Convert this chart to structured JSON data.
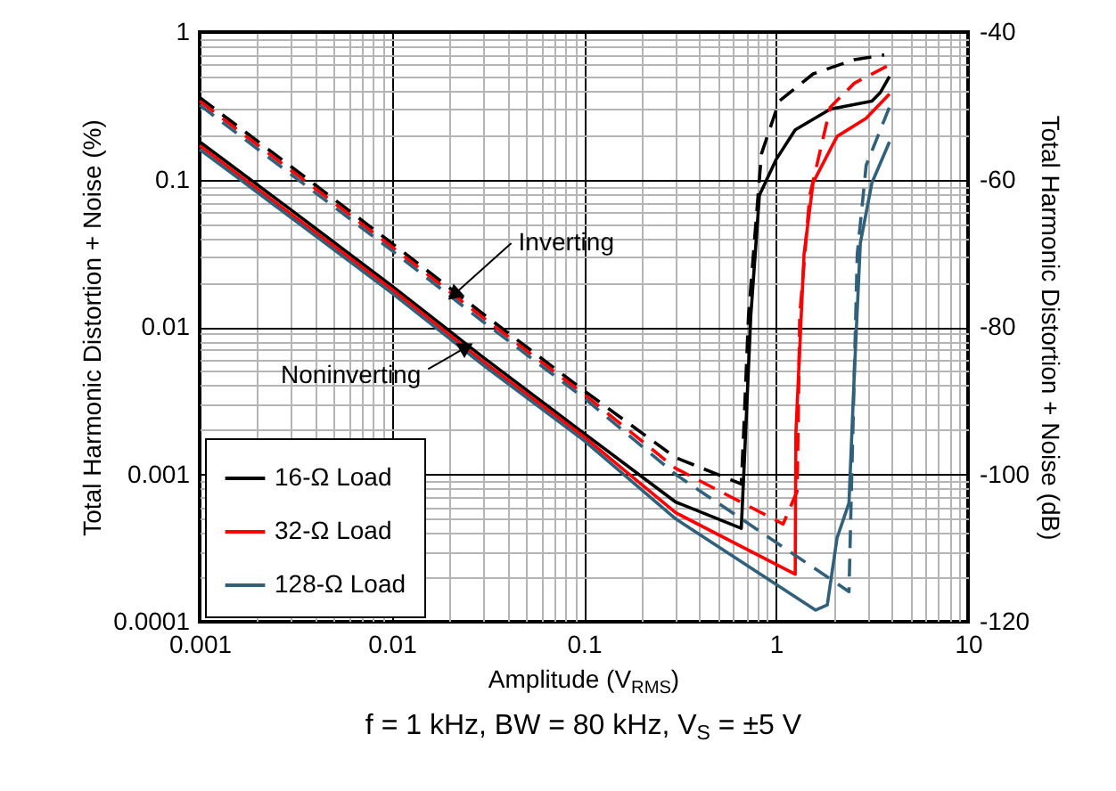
{
  "chart_data": {
    "type": "line",
    "xlabel": "Amplitude (V$_{RMS}$)",
    "ylabel": "Total Harmonic Distortion + Noise (%)",
    "y2label": "Total Harmonic Distortion + Noise (dB)",
    "log": "xy",
    "grid": true,
    "legend": "bottom left",
    "xlim": [
      0.001,
      10
    ],
    "ylim": [
      0.0001,
      1
    ],
    "y2lim": [
      -120,
      -40
    ],
    "xticks": [
      0.001,
      {
        "value": 0.002,
        "label": null
      },
      {
        "value": 0.003,
        "label": null
      },
      {
        "value": 0.004,
        "label": null
      },
      {
        "value": 0.005,
        "label": null
      },
      {
        "value": 0.006,
        "label": null
      },
      {
        "value": 0.007,
        "label": null
      },
      {
        "value": 0.008,
        "label": null
      },
      {
        "value": 0.009,
        "label": null
      },
      0.01,
      {
        "value": 0.02,
        "label": null
      },
      {
        "value": 0.03,
        "label": null
      },
      {
        "value": 0.04,
        "label": null
      },
      {
        "value": 0.05,
        "label": null
      },
      {
        "value": 0.06,
        "label": null
      },
      {
        "value": 0.07,
        "label": null
      },
      {
        "value": 0.08,
        "label": null
      },
      {
        "value": 0.09,
        "label": null
      },
      0.1,
      {
        "value": 0.2,
        "label": null
      },
      {
        "value": 0.3,
        "label": null
      },
      {
        "value": 0.4,
        "label": null
      },
      {
        "value": 0.5,
        "label": null
      },
      {
        "value": 0.6,
        "label": null
      },
      {
        "value": 0.7,
        "label": null
      },
      {
        "value": 0.8,
        "label": null
      },
      {
        "value": 0.9,
        "label": null
      },
      1,
      {
        "value": 2,
        "label": null
      },
      {
        "value": 3,
        "label": null
      },
      {
        "value": 4,
        "label": null
      },
      {
        "value": 5,
        "label": null
      },
      {
        "value": 6,
        "label": null
      },
      {
        "value": 7,
        "label": null
      },
      {
        "value": 8,
        "label": null
      },
      {
        "value": 9,
        "label": null
      },
      10
    ],
    "yticks": [
      0.0001,
      {
        "value": 0.0002,
        "label": null
      },
      {
        "value": 0.0003,
        "label": null
      },
      {
        "value": 0.0004,
        "label": null
      },
      {
        "value": 0.0005,
        "label": null
      },
      {
        "value": 0.0006,
        "label": null
      },
      {
        "value": 0.0007,
        "label": null
      },
      {
        "value": 0.0008,
        "label": null
      },
      {
        "value": 0.0009,
        "label": null
      },
      0.001,
      {
        "value": 0.002,
        "label": null
      },
      {
        "value": 0.003,
        "label": null
      },
      {
        "value": 0.004,
        "label": null
      },
      {
        "value": 0.005,
        "label": null
      },
      {
        "value": 0.006,
        "label": null
      },
      {
        "value": 0.007,
        "label": null
      },
      {
        "value": 0.008,
        "label": null
      },
      {
        "value": 0.009,
        "label": null
      },
      0.01,
      {
        "value": 0.02,
        "label": null
      },
      {
        "value": 0.03,
        "label": null
      },
      {
        "value": 0.04,
        "label": null
      },
      {
        "value": 0.05,
        "label": null
      },
      {
        "value": 0.06,
        "label": null
      },
      {
        "value": 0.07,
        "label": null
      },
      {
        "value": 0.08,
        "label": null
      },
      {
        "value": 0.09,
        "label": null
      },
      0.1,
      {
        "value": 0.2,
        "label": null
      },
      {
        "value": 0.3,
        "label": null
      },
      {
        "value": 0.4,
        "label": null
      },
      {
        "value": 0.5,
        "label": null
      },
      {
        "value": 0.6,
        "label": null
      },
      {
        "value": 0.7,
        "label": null
      },
      {
        "value": 0.8,
        "label": null
      },
      {
        "value": 0.9,
        "label": null
      },
      1
    ],
    "y2ticks": [
      -40,
      -60,
      -80,
      -100,
      -120
    ],
    "series": [
      {
        "name": "16-Ω Load",
        "color": "#000000",
        "line_style": "solid",
        "x": [
          0.001,
          0.003,
          0.01,
          0.03,
          0.1,
          0.3,
          0.66,
          0.68,
          0.74,
          0.82,
          1.0,
          1.26,
          1.92,
          3.16,
          3.5,
          3.9
        ],
        "values": [
          0.18,
          0.062,
          0.019,
          0.0062,
          0.0019,
          0.00065,
          0.00043,
          0.001,
          0.012,
          0.078,
          0.136,
          0.217,
          0.3,
          0.34,
          0.39,
          0.5
        ]
      },
      {
        "name": "32-Ω Load",
        "color": "#ff0000",
        "line_style": "solid",
        "x": [
          0.001,
          0.003,
          0.01,
          0.03,
          0.1,
          0.3,
          1.26,
          1.27,
          1.4,
          1.56,
          2.08,
          2.95,
          3.9
        ],
        "values": [
          0.17,
          0.058,
          0.018,
          0.0058,
          0.0018,
          0.00055,
          0.00021,
          0.0019,
          0.031,
          0.095,
          0.196,
          0.26,
          0.38
        ]
      },
      {
        "name": "128-Ω Load",
        "color": "#31607a",
        "line_style": "solid",
        "x": [
          0.001,
          0.003,
          0.01,
          0.03,
          0.1,
          0.3,
          1.61,
          1.85,
          2.08,
          2.4,
          2.56,
          2.75,
          3.16,
          3.9
        ],
        "values": [
          0.16,
          0.055,
          0.017,
          0.0055,
          0.0017,
          0.0005,
          0.00012,
          0.00013,
          0.00037,
          0.00064,
          0.0049,
          0.037,
          0.095,
          0.18
        ]
      },
      {
        "color": "#000000",
        "line_style": "dashed",
        "x": [
          0.001,
          0.003,
          0.01,
          0.03,
          0.1,
          0.3,
          0.66,
          0.68,
          0.72,
          0.84,
          1.04,
          1.56,
          2.56,
          3.66
        ],
        "values": [
          0.36,
          0.122,
          0.037,
          0.0122,
          0.0037,
          0.0013,
          0.00086,
          0.002,
          0.012,
          0.149,
          0.34,
          0.52,
          0.65,
          0.7
        ]
      },
      {
        "color": "#ff0000",
        "line_style": "dashed",
        "x": [
          0.001,
          0.003,
          0.01,
          0.03,
          0.1,
          0.3,
          1.09,
          1.29,
          1.33,
          1.5,
          1.92,
          2.56,
          3.9
        ],
        "values": [
          0.34,
          0.115,
          0.035,
          0.0115,
          0.0035,
          0.0011,
          0.00046,
          0.00077,
          0.012,
          0.078,
          0.31,
          0.45,
          0.6
        ]
      },
      {
        "color": "#31607a",
        "line_style": "dashed",
        "x": [
          0.001,
          0.003,
          0.01,
          0.03,
          0.1,
          0.3,
          2.4,
          2.47,
          2.65,
          2.95,
          3.9
        ],
        "values": [
          0.32,
          0.108,
          0.033,
          0.0108,
          0.0033,
          0.001,
          0.00016,
          0.00077,
          0.031,
          0.125,
          0.31
        ]
      }
    ],
    "annotations": [
      {
        "text": "Inverting",
        "x": 0.021,
        "y": 0.0165
      },
      {
        "text": "Noninverting",
        "x": 0.0245,
        "y": 0.0073
      },
      "f = 1 kHz, BW = 80 kHz, V$_{S}$ = ±5 V"
    ]
  }
}
